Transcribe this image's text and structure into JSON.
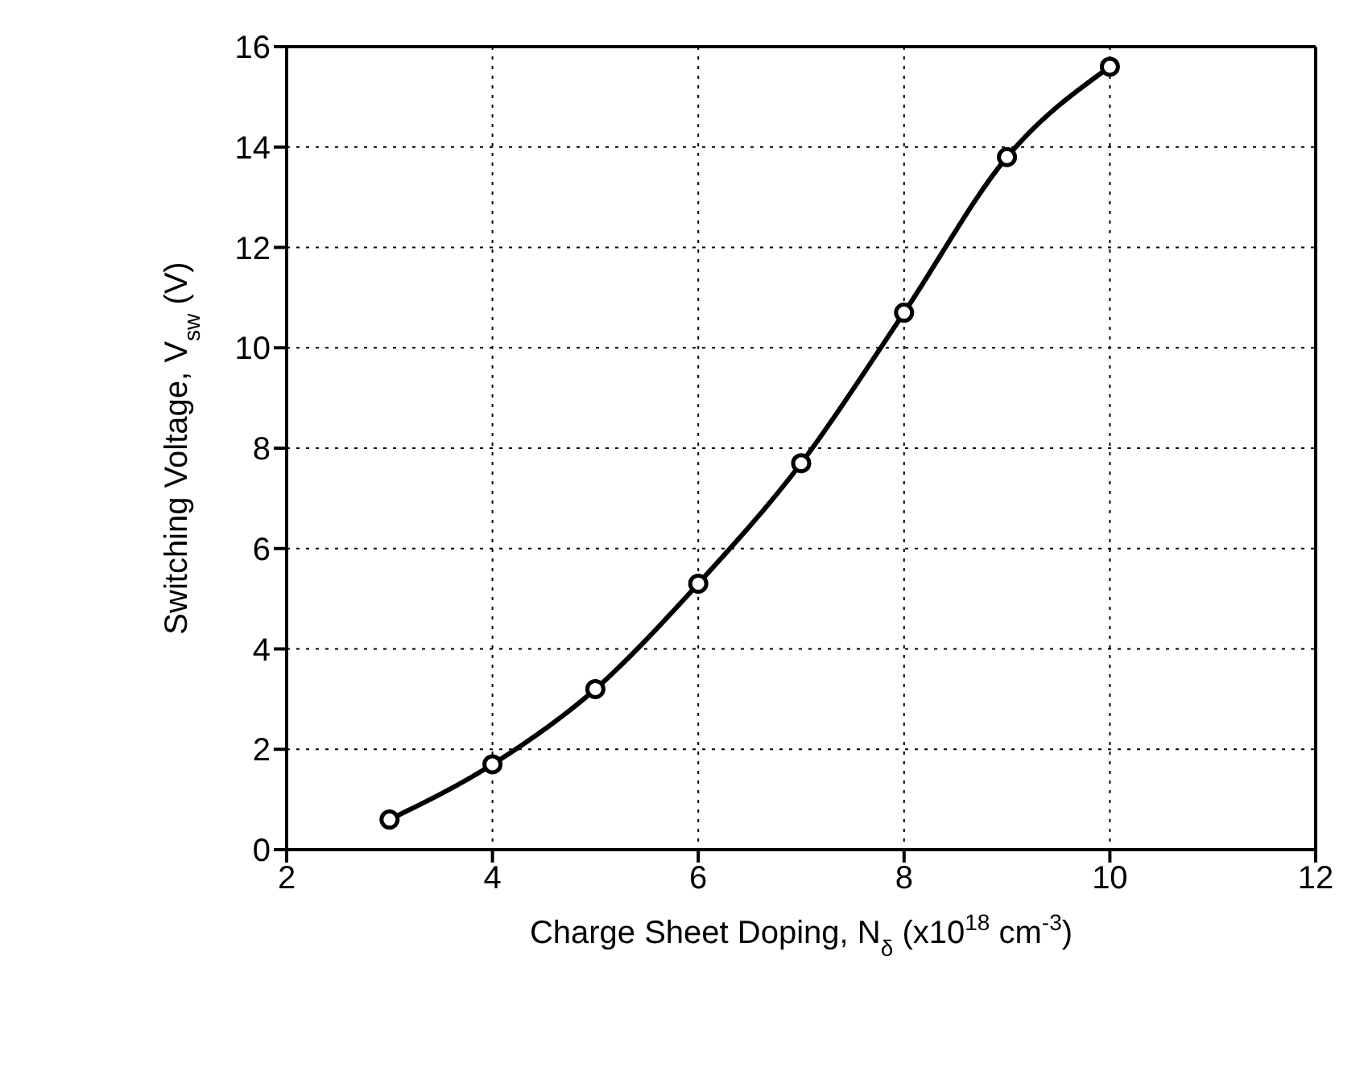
{
  "chart_data": {
    "type": "line",
    "xlabel": "Charge Sheet Doping, N$_{δ}$ (x10$^{18}$ cm$^{-3}$)",
    "ylabel": "Switching Voltage, V$_{sw}$ (V)",
    "x": [
      3,
      4,
      5,
      6,
      7,
      8,
      9,
      10
    ],
    "series": [
      {
        "color": "#000000",
        "values": [
          0.6,
          1.7,
          3.2,
          5.3,
          7.7,
          10.7,
          13.8,
          15.6
        ]
      }
    ],
    "xlim": [
      2,
      12
    ],
    "xticks": [
      2,
      4,
      6,
      8,
      10,
      12
    ],
    "ylim": [
      0,
      16
    ],
    "yticks": [
      0,
      2,
      4,
      6,
      8,
      10,
      12,
      14,
      16
    ],
    "grid": true,
    "marker": "circle",
    "line_style": "solid",
    "legend": false
  }
}
